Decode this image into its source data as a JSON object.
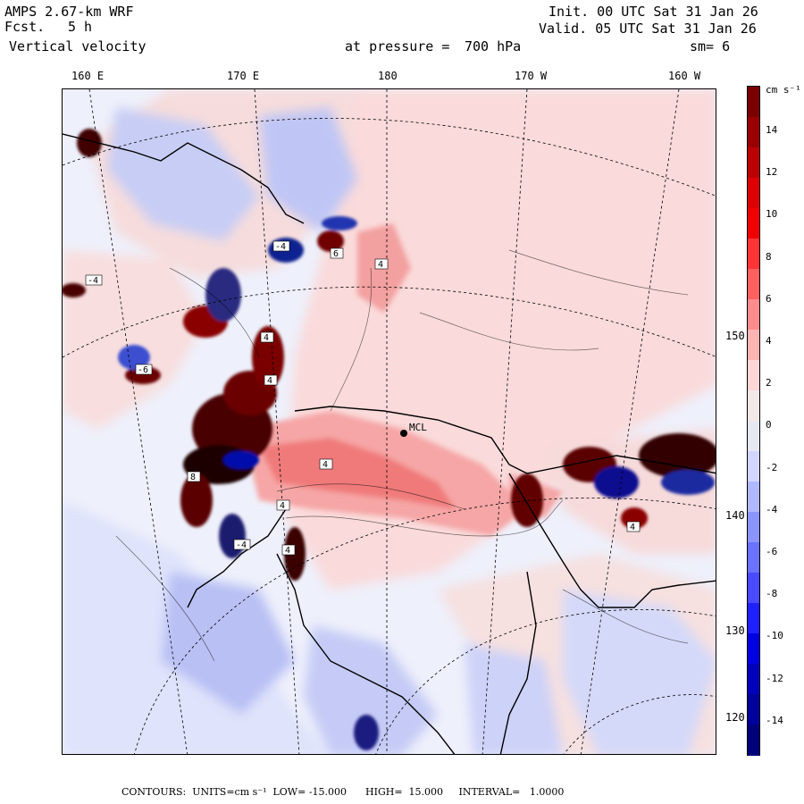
{
  "header": {
    "model": "AMPS 2.67-km WRF",
    "fcst_label": "Fcst.",
    "fcst_value": "5 h",
    "field": "Vertical velocity",
    "init": "Init. 00 UTC Sat 31 Jan 26",
    "valid": "Valid. 05 UTC Sat 31 Jan 26",
    "pressure_label": "at pressure =",
    "pressure_value": "700 hPa",
    "smoothing": "sm= 6"
  },
  "map": {
    "lon_labels": [
      "160 E",
      "170 E",
      "180",
      "170 W",
      "160 W"
    ],
    "lat_labels": [
      "150 W",
      "140 W",
      "130 W",
      "120 W"
    ],
    "station": "MCL",
    "contour_labels": [
      "4",
      "-4",
      "6",
      "8",
      "-6",
      "4",
      "4",
      "-4",
      "4",
      "4",
      "-4",
      "4",
      "4"
    ]
  },
  "colorbar": {
    "units": "cm s⁻¹",
    "tick_labels": [
      "14",
      "12",
      "10",
      "8",
      "6",
      "4",
      "2",
      "0",
      "-2",
      "-4",
      "-6",
      "-8",
      "-10",
      "-12",
      "-14"
    ],
    "colors": [
      "#7a0000",
      "#9a0000",
      "#bb0000",
      "#dd0000",
      "#f00000",
      "#ff3535",
      "#ff6060",
      "#ff8c8c",
      "#ffb4b4",
      "#ffd6d6",
      "#f3e8e8",
      "#e8e8f3",
      "#d2d6ff",
      "#b0b8ff",
      "#8c94ff",
      "#6a72ff",
      "#4a4aff",
      "#2020ff",
      "#0000e0",
      "#0000bb",
      "#00009a",
      "#00007a"
    ]
  },
  "footer": {
    "text": "CONTOURS:  UNITS=cm s⁻¹  LOW= -15.000      HIGH=  15.000     INTERVAL=   1.0000"
  }
}
